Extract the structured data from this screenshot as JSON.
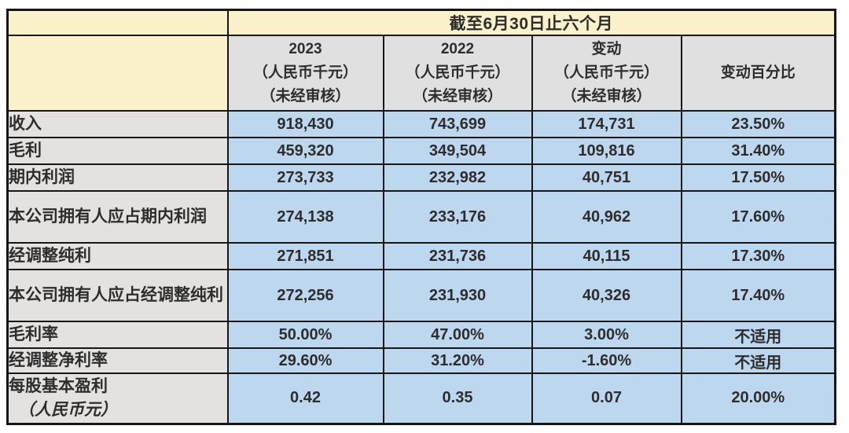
{
  "colors": {
    "header_yellow": "#FBF1CB",
    "column_header_gray": "#E0E0E0",
    "label_column_gray": "#E3E2E0",
    "data_cell_blue": "#BDD7EE",
    "border_black": "#161616",
    "text_dark": "#2d2d2d"
  },
  "table": {
    "period_header": "截至6月30日止六个月",
    "column_headers": [
      {
        "line1": "2023",
        "line2": "（人民币千元）",
        "line3": "（未经审核）"
      },
      {
        "line1": "2022",
        "line2": "（人民币千元）",
        "line3": "（未经审核）"
      },
      {
        "line1": "变动",
        "line2": "（人民币千元）",
        "line3": "（未经审核）"
      },
      {
        "line1": "变动百分比",
        "line2": "",
        "line3": ""
      }
    ],
    "rows": [
      {
        "label": "收入",
        "label_sub": "",
        "y2023": "918,430",
        "y2022": "743,699",
        "change": "174,731",
        "change_pct": "23.50%"
      },
      {
        "label": "毛利",
        "label_sub": "",
        "y2023": "459,320",
        "y2022": "349,504",
        "change": "109,816",
        "change_pct": "31.40%"
      },
      {
        "label": "期内利润",
        "label_sub": "",
        "y2023": "273,733",
        "y2022": "232,982",
        "change": "40,751",
        "change_pct": "17.50%"
      },
      {
        "label": "本公司拥有人应占期内利润",
        "label_sub": "",
        "y2023": "274,138",
        "y2022": "233,176",
        "change": "40,962",
        "change_pct": "17.60%"
      },
      {
        "label": "经调整纯利",
        "label_sub": "",
        "y2023": "271,851",
        "y2022": "231,736",
        "change": "40,115",
        "change_pct": "17.30%"
      },
      {
        "label": "本公司拥有人应占经调整纯利",
        "label_sub": "",
        "y2023": "272,256",
        "y2022": "231,930",
        "change": "40,326",
        "change_pct": "17.40%"
      },
      {
        "label": "毛利率",
        "label_sub": "",
        "y2023": "50.00%",
        "y2022": "47.00%",
        "change": "3.00%",
        "change_pct": "不适用"
      },
      {
        "label": "经调整净利率",
        "label_sub": "",
        "y2023": "29.60%",
        "y2022": "31.20%",
        "change": "-1.60%",
        "change_pct": "不适用"
      },
      {
        "label": "每股基本盈利",
        "label_sub": "（人民币元）",
        "y2023": "0.42",
        "y2022": "0.35",
        "change": "0.07",
        "change_pct": "20.00%"
      }
    ]
  }
}
